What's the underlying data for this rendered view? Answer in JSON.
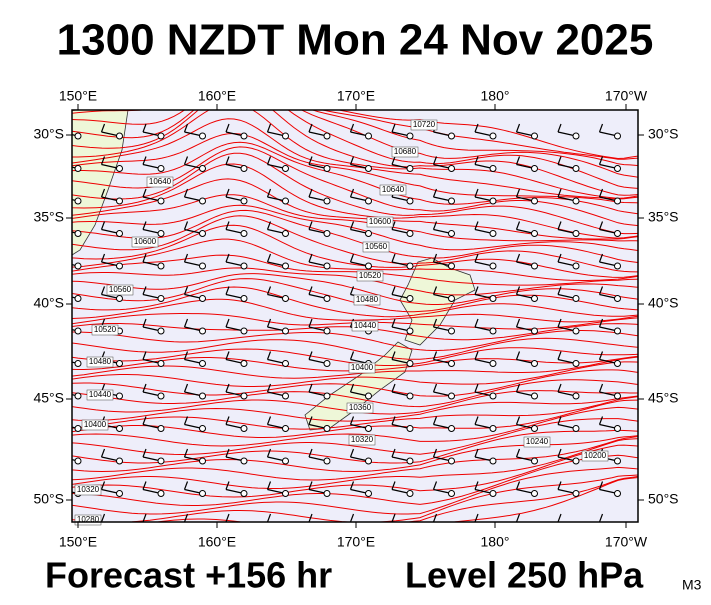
{
  "title": "1300 NZDT Mon 24 Nov 2025",
  "map": {
    "lon_labels": [
      "150°E",
      "160°E",
      "170°E",
      "180°",
      "170°W"
    ],
    "lat_labels": [
      "30°S",
      "35°S",
      "40°S",
      "45°S",
      "50°S"
    ],
    "contour_labels": [
      "10720",
      "10680",
      "10640",
      "10640",
      "10600",
      "10600",
      "10560",
      "10560",
      "10520",
      "10520",
      "10480",
      "10480",
      "10440",
      "10440",
      "10400",
      "10400",
      "10360",
      "10320",
      "10320",
      "10280",
      "10240",
      "10200"
    ]
  },
  "footer": {
    "forecast": "Forecast +156 hr",
    "level": "Level 250 hPa",
    "model": "M3"
  }
}
